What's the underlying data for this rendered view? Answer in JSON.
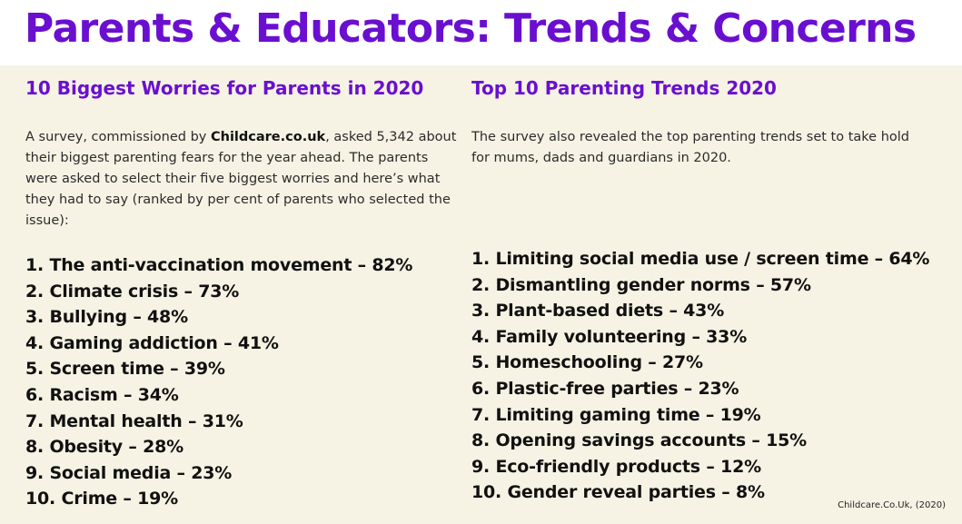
{
  "title": "Parents & Educators: Trends & Concerns",
  "worries": {
    "heading": "10 Biggest Worries for Parents in 2020",
    "intro_before": "A survey, commissioned by ",
    "intro_brand": "Childcare.co.uk",
    "intro_after": ", asked 5,342 about their biggest parenting fears for the year ahead. The parents were asked to select their five biggest worries and here’s what they had to say (ranked by per cent of parents who selected the issue):",
    "items": [
      "1. The anti-vaccination movement – 82%",
      "2. Climate crisis – 73%",
      "3. Bullying – 48%",
      "4. Gaming addiction – 41%",
      "5. Screen time – 39%",
      "6. Racism – 34%",
      "7. Mental health – 31%",
      "8. Obesity – 28%",
      "9. Social media – 23%",
      "10. Crime – 19%"
    ]
  },
  "trends": {
    "heading": "Top 10 Parenting Trends 2020",
    "intro": "The survey also revealed the top parenting trends set to take hold for mums, dads and guardians in 2020.",
    "items": [
      "1. Limiting social media use / screen time – 64%",
      "2. Dismantling gender norms – 57%",
      "3. Plant-based diets – 43%",
      "4. Family volunteering – 33%",
      "5. Homeschooling – 27%",
      "6. Plastic-free parties – 23%",
      "7. Limiting gaming time – 19%",
      "8. Opening savings accounts – 15%",
      "9. Eco-friendly products – 12%",
      "10. Gender reveal parties – 8%"
    ]
  },
  "source": "Childcare.Co.Uk, (2020)",
  "colors": {
    "accent": "#6a0fd0",
    "panel_background": "#f6f3e4",
    "text": "#111111"
  }
}
